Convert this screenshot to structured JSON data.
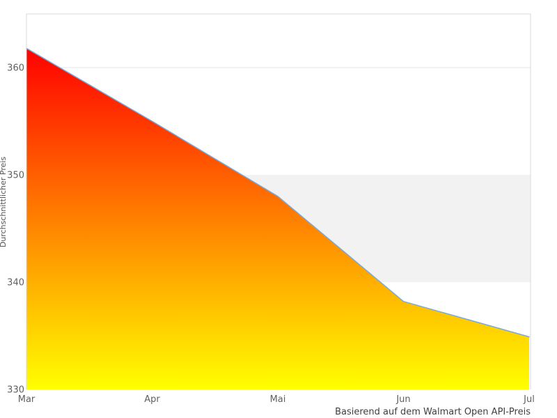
{
  "chart_data": {
    "type": "area",
    "categories": [
      "Mar",
      "Apr",
      "Mai",
      "Jun",
      "Jul"
    ],
    "values": [
      361.8,
      355.0,
      348.0,
      338.2,
      334.9
    ],
    "title": "",
    "xlabel": "",
    "ylabel": "Durchschnittlicher Preis",
    "credits": "Basierend auf dem Walmart Open API-Preis",
    "ylim": [
      330,
      365
    ],
    "yticks": [
      330,
      340,
      350,
      360
    ],
    "visible_gridlines": [
      360
    ],
    "plot_band": {
      "from": 340,
      "to": 350,
      "color": "#f2f2f2"
    },
    "legend": "none",
    "grid": "partial",
    "colors": {
      "line": "#7aa9d8",
      "area_gradient_top": "#ff0000",
      "area_gradient_bottom": "#ffff00",
      "plot_border": "#d9d9d9",
      "gridline": "#e6e6e6",
      "tick_label": "#606060",
      "axis_title": "#555555",
      "credits_text": "#404040",
      "background": "#ffffff"
    }
  }
}
